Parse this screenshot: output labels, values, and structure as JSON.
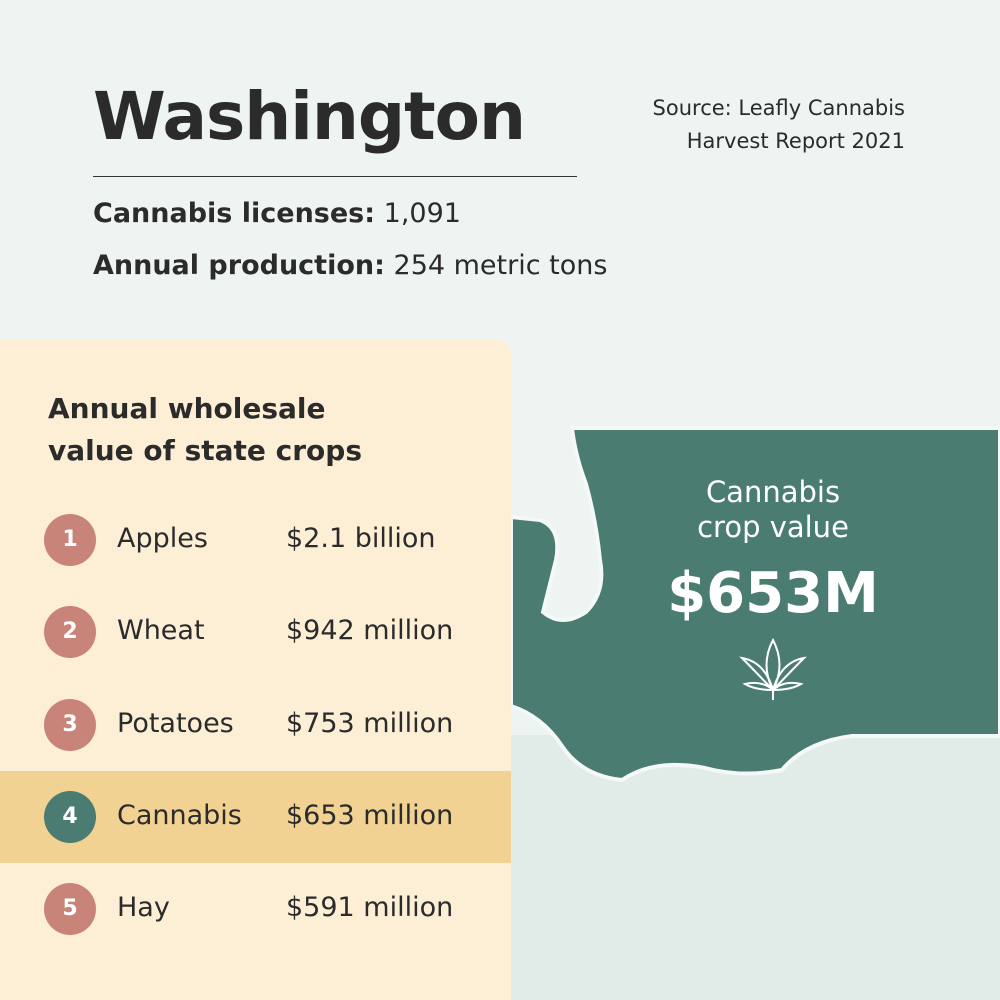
{
  "header": {
    "title": "Washington",
    "source": [
      "Source: Leafly Cannabis",
      "Harvest Report 2021"
    ]
  },
  "stats": [
    {
      "label": "Cannabis licenses:",
      "value": "1,091"
    },
    {
      "label": "Annual production:",
      "value": "254 metric tons"
    }
  ],
  "table": {
    "title": [
      "Annual wholesale",
      "value of state crops"
    ],
    "rows": [
      [
        "1",
        "Apples",
        "$2.1 billion"
      ],
      [
        "2",
        "Wheat",
        "$942 million"
      ],
      [
        "3",
        "Potatoes",
        "$753 million"
      ],
      [
        "4",
        "Cannabis",
        "$653 million"
      ],
      [
        "5",
        "Hay",
        "$591 million"
      ]
    ]
  },
  "map": {
    "label": [
      "Cannabis",
      "crop value"
    ],
    "value": "$653M"
  }
}
